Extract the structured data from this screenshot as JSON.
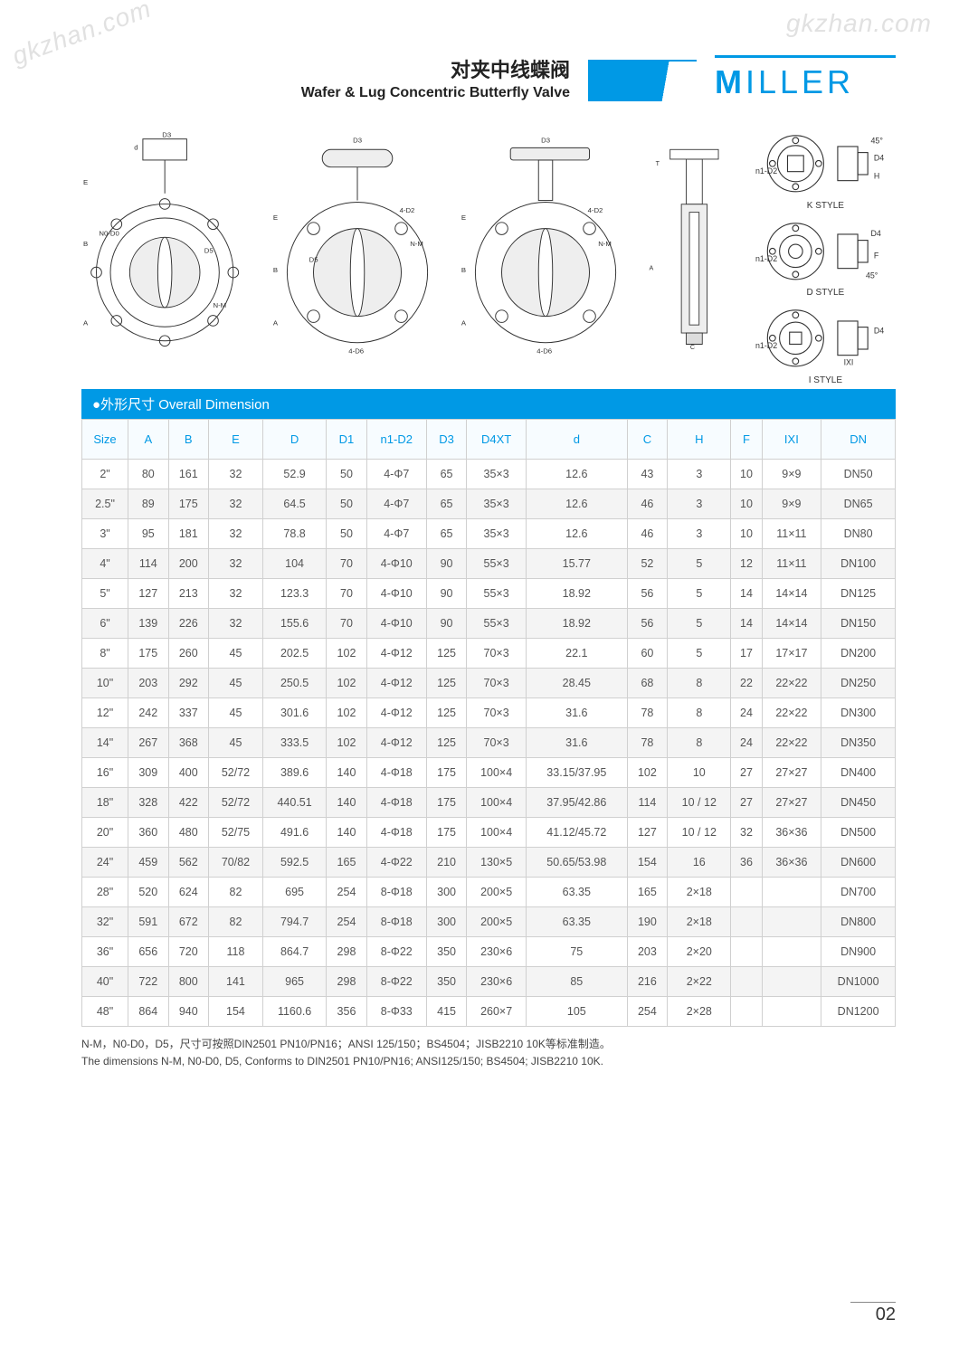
{
  "watermark": "gkzhan.com",
  "header": {
    "title_cn": "对夹中线蝶阀",
    "title_en": "Wafer & Lug Concentric Butterfly Valve",
    "brand_first": "M",
    "brand_rest": "ILLER"
  },
  "colors": {
    "accent": "#0099e5",
    "grid": "#d0d0d0",
    "row_alt": "#f4f4f4",
    "text": "#555",
    "header_text": "#0099e5"
  },
  "drawings": {
    "labels": [
      "D3",
      "d",
      "E",
      "B",
      "A",
      "N0-D0",
      "D5",
      "N-M",
      "4-D2",
      "4-D6",
      "D4",
      "n1-D2",
      "H",
      "F",
      "C",
      "T",
      "IXI",
      "45°"
    ],
    "styles": [
      {
        "name": "K STYLE"
      },
      {
        "name": "D STYLE"
      },
      {
        "name": "I STYLE"
      }
    ]
  },
  "section": {
    "bullet": "●",
    "label_cn": "外形尺寸",
    "label_en": "Overall Dimension"
  },
  "table": {
    "columns": [
      "Size",
      "A",
      "B",
      "E",
      "D",
      "D1",
      "n1-D2",
      "D3",
      "D4XT",
      "d",
      "C",
      "H",
      "F",
      "IXI",
      "DN"
    ],
    "rows": [
      [
        "2\"",
        "80",
        "161",
        "32",
        "52.9",
        "50",
        "4-Φ7",
        "65",
        "35×3",
        "12.6",
        "43",
        "3",
        "10",
        "9×9",
        "DN50"
      ],
      [
        "2.5\"",
        "89",
        "175",
        "32",
        "64.5",
        "50",
        "4-Φ7",
        "65",
        "35×3",
        "12.6",
        "46",
        "3",
        "10",
        "9×9",
        "DN65"
      ],
      [
        "3\"",
        "95",
        "181",
        "32",
        "78.8",
        "50",
        "4-Φ7",
        "65",
        "35×3",
        "12.6",
        "46",
        "3",
        "10",
        "11×11",
        "DN80"
      ],
      [
        "4\"",
        "114",
        "200",
        "32",
        "104",
        "70",
        "4-Φ10",
        "90",
        "55×3",
        "15.77",
        "52",
        "5",
        "12",
        "11×11",
        "DN100"
      ],
      [
        "5\"",
        "127",
        "213",
        "32",
        "123.3",
        "70",
        "4-Φ10",
        "90",
        "55×3",
        "18.92",
        "56",
        "5",
        "14",
        "14×14",
        "DN125"
      ],
      [
        "6\"",
        "139",
        "226",
        "32",
        "155.6",
        "70",
        "4-Φ10",
        "90",
        "55×3",
        "18.92",
        "56",
        "5",
        "14",
        "14×14",
        "DN150"
      ],
      [
        "8\"",
        "175",
        "260",
        "45",
        "202.5",
        "102",
        "4-Φ12",
        "125",
        "70×3",
        "22.1",
        "60",
        "5",
        "17",
        "17×17",
        "DN200"
      ],
      [
        "10\"",
        "203",
        "292",
        "45",
        "250.5",
        "102",
        "4-Φ12",
        "125",
        "70×3",
        "28.45",
        "68",
        "8",
        "22",
        "22×22",
        "DN250"
      ],
      [
        "12\"",
        "242",
        "337",
        "45",
        "301.6",
        "102",
        "4-Φ12",
        "125",
        "70×3",
        "31.6",
        "78",
        "8",
        "24",
        "22×22",
        "DN300"
      ],
      [
        "14\"",
        "267",
        "368",
        "45",
        "333.5",
        "102",
        "4-Φ12",
        "125",
        "70×3",
        "31.6",
        "78",
        "8",
        "24",
        "22×22",
        "DN350"
      ],
      [
        "16\"",
        "309",
        "400",
        "52/72",
        "389.6",
        "140",
        "4-Φ18",
        "175",
        "100×4",
        "33.15/37.95",
        "102",
        "10",
        "27",
        "27×27",
        "DN400"
      ],
      [
        "18\"",
        "328",
        "422",
        "52/72",
        "440.51",
        "140",
        "4-Φ18",
        "175",
        "100×4",
        "37.95/42.86",
        "114",
        "10 / 12",
        "27",
        "27×27",
        "DN450"
      ],
      [
        "20\"",
        "360",
        "480",
        "52/75",
        "491.6",
        "140",
        "4-Φ18",
        "175",
        "100×4",
        "41.12/45.72",
        "127",
        "10 / 12",
        "32",
        "36×36",
        "DN500"
      ],
      [
        "24\"",
        "459",
        "562",
        "70/82",
        "592.5",
        "165",
        "4-Φ22",
        "210",
        "130×5",
        "50.65/53.98",
        "154",
        "16",
        "36",
        "36×36",
        "DN600"
      ],
      [
        "28\"",
        "520",
        "624",
        "82",
        "695",
        "254",
        "8-Φ18",
        "300",
        "200×5",
        "63.35",
        "165",
        "2×18",
        "",
        "",
        "DN700"
      ],
      [
        "32\"",
        "591",
        "672",
        "82",
        "794.7",
        "254",
        "8-Φ18",
        "300",
        "200×5",
        "63.35",
        "190",
        "2×18",
        "",
        "",
        "DN800"
      ],
      [
        "36\"",
        "656",
        "720",
        "118",
        "864.7",
        "298",
        "8-Φ22",
        "350",
        "230×6",
        "75",
        "203",
        "2×20",
        "",
        "",
        "DN900"
      ],
      [
        "40\"",
        "722",
        "800",
        "141",
        "965",
        "298",
        "8-Φ22",
        "350",
        "230×6",
        "85",
        "216",
        "2×22",
        "",
        "",
        "DN1000"
      ],
      [
        "48\"",
        "864",
        "940",
        "154",
        "1160.6",
        "356",
        "8-Φ33",
        "415",
        "260×7",
        "105",
        "254",
        "2×28",
        "",
        "",
        "DN1200"
      ]
    ]
  },
  "footnote": {
    "line1": "N-M，N0-D0，D5，尺寸可按照DIN2501 PN10/PN16；ANSI 125/150；BS4504；JISB2210 10K等标准制造。",
    "line2": "The dimensions N-M, N0-D0, D5, Conforms to DIN2501 PN10/PN16; ANSI125/150; BS4504; JISB2210 10K."
  },
  "page_number": "02"
}
